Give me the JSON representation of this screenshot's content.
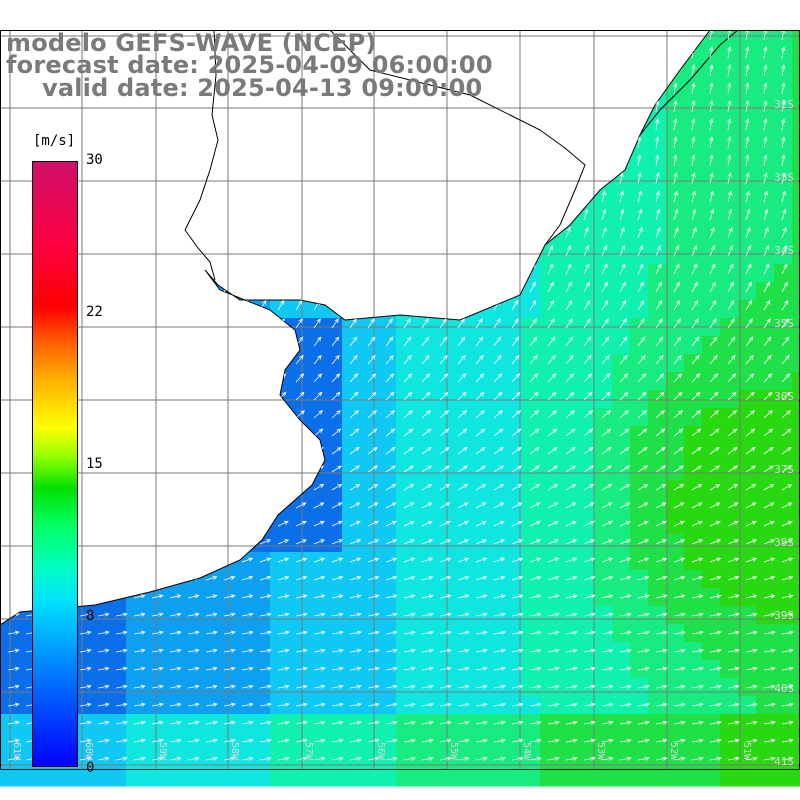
{
  "header": {
    "line1": "modelo GEFS-WAVE (NCEP)",
    "line2": "forecast date: 2025-04-09 06:00:00",
    "line3": "valid date: 2025-04-13 09:00:00"
  },
  "colorbar": {
    "unit": "[m/s]",
    "ticks": [
      "30",
      "22",
      "15",
      "8",
      "0"
    ]
  },
  "lat_labels": [
    "32S",
    "33S",
    "34S",
    "35S",
    "36S",
    "37S",
    "38S",
    "39S",
    "40S",
    "41S"
  ],
  "lon_labels": [
    "61W",
    "60W",
    "59W",
    "58W",
    "57W",
    "56W",
    "55W",
    "54W",
    "53W",
    "52W",
    "51W"
  ],
  "colors": {
    "land": "#ffffff",
    "coastline": "#000000",
    "grid": "#7a7a7a",
    "arrows": "#ffffff",
    "title": "#7a7a7a"
  }
}
